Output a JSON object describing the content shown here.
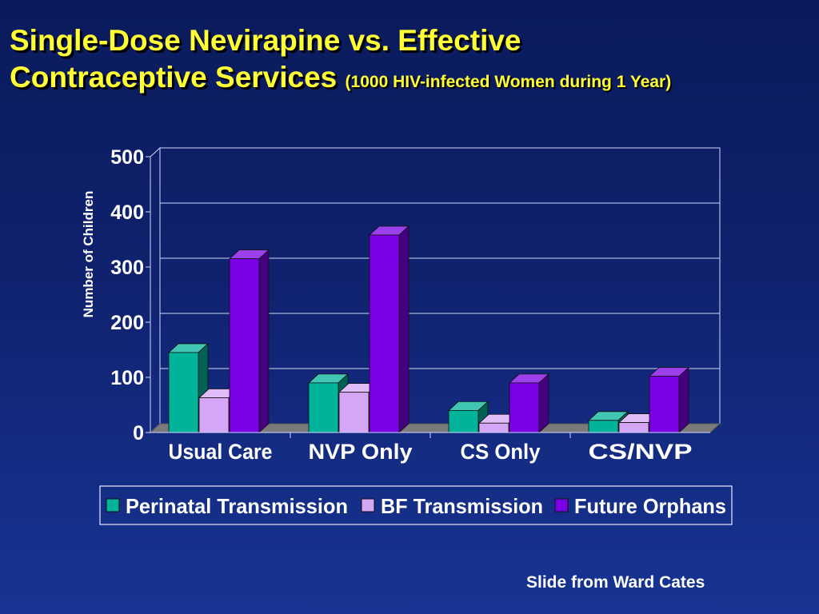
{
  "slide": {
    "title_line1": "Single-Dose Nevirapine vs. Effective",
    "title_line2": "Contraceptive Services",
    "title_sub": "(1000 HIV-infected Women during 1 Year)",
    "credit": "Slide from Ward Cates"
  },
  "colors": {
    "title": "#ffff33",
    "background": "#10226e",
    "perinatal": "#00b39a",
    "bf": "#d5a6f5",
    "orphans": "#7b00e6"
  },
  "chart_data": {
    "type": "bar",
    "title": "",
    "xlabel": "",
    "ylabel": "Number of Children",
    "categories": [
      "Usual Care",
      "NVP Only",
      "CS Only",
      "CS/NVP"
    ],
    "series": [
      {
        "name": "Perinatal Transmission",
        "values": [
          145,
          90,
          40,
          22
        ]
      },
      {
        "name": "BF Transmission",
        "values": [
          63,
          73,
          17,
          18
        ]
      },
      {
        "name": "Future Orphans",
        "values": [
          315,
          358,
          90,
          102
        ]
      }
    ],
    "ylim": [
      0,
      500
    ],
    "yticks": [
      "0",
      "100",
      "200",
      "300",
      "400",
      "500"
    ],
    "grid": true,
    "style": "3d-clustered-bar",
    "legend": "bottom"
  }
}
